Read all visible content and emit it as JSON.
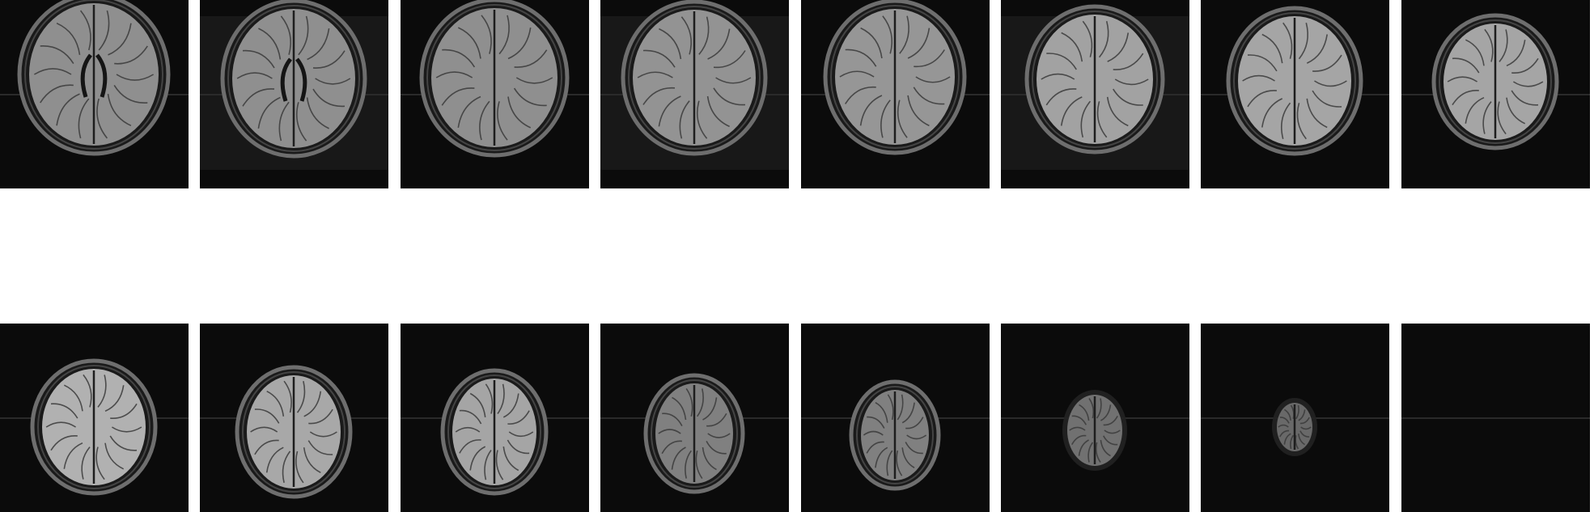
{
  "figure": {
    "rows": [
      {
        "slices": [
          {
            "icon": "axial-mri-slice-icon"
          },
          {
            "icon": "axial-mri-slice-icon"
          },
          {
            "icon": "axial-mri-slice-icon"
          },
          {
            "icon": "axial-mri-slice-icon"
          },
          {
            "icon": "axial-mri-slice-icon"
          },
          {
            "icon": "axial-mri-slice-icon"
          },
          {
            "icon": "axial-mri-slice-icon"
          },
          {
            "icon": "axial-mri-slice-icon"
          }
        ]
      },
      {
        "slices": [
          {
            "icon": "axial-mri-slice-icon"
          },
          {
            "icon": "axial-mri-slice-icon"
          },
          {
            "icon": "axial-mri-slice-icon"
          },
          {
            "icon": "axial-mri-slice-icon"
          },
          {
            "icon": "axial-mri-slice-icon"
          },
          {
            "icon": "axial-mri-slice-icon"
          },
          {
            "icon": "axial-mri-slice-icon"
          },
          {
            "icon": "axial-mri-slice-icon"
          }
        ]
      }
    ],
    "colors": {
      "background": "#ffffff",
      "tile": "#0b0b0b",
      "tissue": "#9a9a9a",
      "scalp": "#6e6e6e"
    }
  }
}
